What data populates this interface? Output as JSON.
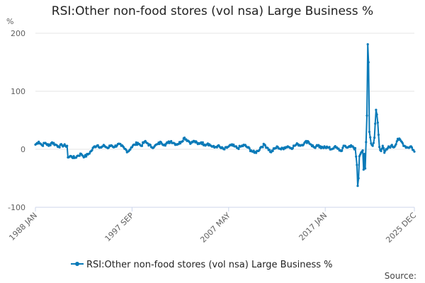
{
  "chart_data": {
    "type": "line",
    "title": "RSI:Other non-food stores (vol nsa) Large Business %",
    "ylabel": "%",
    "xlabel": "",
    "ylim": [
      -100,
      200
    ],
    "yticks": [
      -100,
      0,
      100,
      200
    ],
    "xlim": [
      "1988 JAN",
      "2025 DEC"
    ],
    "xticks": [
      "1988 JAN",
      "1997 SEP",
      "2007 MAY",
      "2017 JAN",
      "2025 DEC"
    ],
    "grid": true,
    "legend_position": "bottom",
    "source_label": "Source:",
    "color": "#0a7ab8",
    "series": [
      {
        "name": "RSI:Other non-food stores (vol nsa) Large Business %",
        "points": [
          [
            "1988 JAN",
            8
          ],
          [
            "1988 MAY",
            13
          ],
          [
            "1988 SEP",
            7
          ],
          [
            "1989 JAN",
            11
          ],
          [
            "1989 MAY",
            6
          ],
          [
            "1989 SEP",
            12
          ],
          [
            "1990 JAN",
            8
          ],
          [
            "1990 MAY",
            5
          ],
          [
            "1990 SEP",
            7
          ],
          [
            "1991 JAN",
            6
          ],
          [
            "1991 MAR",
            6
          ],
          [
            "1991 APR",
            -14
          ],
          [
            "1991 AUG",
            -12
          ],
          [
            "1991 DEC",
            -15
          ],
          [
            "1992 APR",
            -11
          ],
          [
            "1992 AUG",
            -8
          ],
          [
            "1992 DEC",
            -13
          ],
          [
            "1993 APR",
            -9
          ],
          [
            "1993 AUG",
            -3
          ],
          [
            "1993 DEC",
            5
          ],
          [
            "1994 APR",
            7
          ],
          [
            "1994 AUG",
            3
          ],
          [
            "1994 DEC",
            6
          ],
          [
            "1995 APR",
            2
          ],
          [
            "1995 AUG",
            7
          ],
          [
            "1995 DEC",
            4
          ],
          [
            "1996 APR",
            9
          ],
          [
            "1996 AUG",
            6
          ],
          [
            "1996 DEC",
            1
          ],
          [
            "1997 APR",
            -4
          ],
          [
            "1997 AUG",
            3
          ],
          [
            "1997 DEC",
            8
          ],
          [
            "1998 APR",
            11
          ],
          [
            "1998 AUG",
            6
          ],
          [
            "1998 DEC",
            13
          ],
          [
            "1999 APR",
            10
          ],
          [
            "1999 AUG",
            4
          ],
          [
            "1999 DEC",
            5
          ],
          [
            "2000 APR",
            9
          ],
          [
            "2000 AUG",
            12
          ],
          [
            "2000 DEC",
            8
          ],
          [
            "2001 APR",
            11
          ],
          [
            "2001 AUG",
            14
          ],
          [
            "2001 DEC",
            10
          ],
          [
            "2002 APR",
            9
          ],
          [
            "2002 AUG",
            13
          ],
          [
            "2002 DEC",
            20
          ],
          [
            "2003 APR",
            15
          ],
          [
            "2003 AUG",
            11
          ],
          [
            "2003 DEC",
            14
          ],
          [
            "2004 APR",
            9
          ],
          [
            "2004 AUG",
            12
          ],
          [
            "2004 DEC",
            8
          ],
          [
            "2005 APR",
            10
          ],
          [
            "2005 AUG",
            6
          ],
          [
            "2005 DEC",
            3
          ],
          [
            "2006 APR",
            6
          ],
          [
            "2006 AUG",
            2
          ],
          [
            "2006 DEC",
            0
          ],
          [
            "2007 APR",
            4
          ],
          [
            "2007 AUG",
            7
          ],
          [
            "2007 DEC",
            5
          ],
          [
            "2008 APR",
            2
          ],
          [
            "2008 AUG",
            5
          ],
          [
            "2008 DEC",
            7
          ],
          [
            "2009 APR",
            3
          ],
          [
            "2009 AUG",
            -2
          ],
          [
            "2009 DEC",
            -6
          ],
          [
            "2010 APR",
            -3
          ],
          [
            "2010 AUG",
            4
          ],
          [
            "2010 DEC",
            8
          ],
          [
            "2011 APR",
            2
          ],
          [
            "2011 AUG",
            -5
          ],
          [
            "2011 DEC",
            1
          ],
          [
            "2012 APR",
            4
          ],
          [
            "2012 AUG",
            0
          ],
          [
            "2012 DEC",
            3
          ],
          [
            "2013 APR",
            5
          ],
          [
            "2013 AUG",
            2
          ],
          [
            "2013 DEC",
            6
          ],
          [
            "2014 APR",
            9
          ],
          [
            "2014 AUG",
            7
          ],
          [
            "2014 DEC",
            11
          ],
          [
            "2015 APR",
            14
          ],
          [
            "2015 AUG",
            8
          ],
          [
            "2015 DEC",
            3
          ],
          [
            "2016 APR",
            6
          ],
          [
            "2016 AUG",
            2
          ],
          [
            "2016 DEC",
            5
          ],
          [
            "2017 APR",
            3
          ],
          [
            "2017 AUG",
            0
          ],
          [
            "2017 DEC",
            4
          ],
          [
            "2018 APR",
            1
          ],
          [
            "2018 AUG",
            -3
          ],
          [
            "2018 DEC",
            6
          ],
          [
            "2019 APR",
            3
          ],
          [
            "2019 AUG",
            7
          ],
          [
            "2019 DEC",
            0
          ],
          [
            "2020 JAN",
            2
          ],
          [
            "2020 MAR",
            -27
          ],
          [
            "2020 APR",
            -63
          ],
          [
            "2020 MAY",
            -50
          ],
          [
            "2020 JUN",
            -12
          ],
          [
            "2020 AUG",
            -6
          ],
          [
            "2020 OCT",
            -2
          ],
          [
            "2020 NOV",
            -35
          ],
          [
            "2020 DEC",
            -8
          ],
          [
            "2021 JAN",
            -33
          ],
          [
            "2021 MAR",
            58
          ],
          [
            "2021 APR",
            181
          ],
          [
            "2021 MAY",
            150
          ],
          [
            "2021 JUN",
            30
          ],
          [
            "2021 AUG",
            10
          ],
          [
            "2021 OCT",
            6
          ],
          [
            "2021 DEC",
            20
          ],
          [
            "2022 FEB",
            68
          ],
          [
            "2022 MAR",
            60
          ],
          [
            "2022 APR",
            46
          ],
          [
            "2022 JUN",
            4
          ],
          [
            "2022 AUG",
            -3
          ],
          [
            "2022 OCT",
            6
          ],
          [
            "2022 DEC",
            -6
          ],
          [
            "2023 APR",
            2
          ],
          [
            "2023 AUG",
            6
          ],
          [
            "2023 DEC",
            4
          ],
          [
            "2024 APR",
            18
          ],
          [
            "2024 AUG",
            14
          ],
          [
            "2024 DEC",
            6
          ],
          [
            "2025 APR",
            3
          ],
          [
            "2025 AUG",
            5
          ],
          [
            "2025 DEC",
            -4
          ]
        ]
      }
    ]
  }
}
